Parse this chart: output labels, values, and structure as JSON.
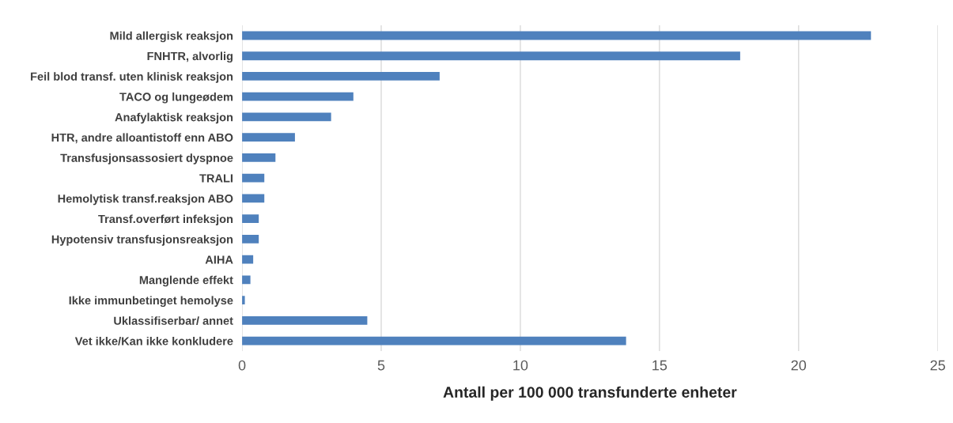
{
  "chart_data": {
    "type": "bar",
    "orientation": "horizontal",
    "xlabel": "Antall per 100 000 transfunderte enheter",
    "categories": [
      "Mild allergisk reaksjon",
      "FNHTR, alvorlig",
      "Feil blod transf. uten klinisk reaksjon",
      "TACO og lungeødem",
      "Anafylaktisk reaksjon",
      "HTR, andre alloantistoff enn ABO",
      "Transfusjonsassosiert dyspnoe",
      "TRALI",
      "Hemolytisk transf.reaksjon ABO",
      "Transf.overført infeksjon",
      "Hypotensiv transfusjonsreaksjon",
      "AIHA",
      "Manglende effekt",
      "Ikke immunbetinget hemolyse",
      "Uklassifiserbar/ annet",
      "Vet ikke/Kan ikke konkludere"
    ],
    "values": [
      22.6,
      17.9,
      7.1,
      4.0,
      3.2,
      1.9,
      1.2,
      0.8,
      0.8,
      0.6,
      0.6,
      0.4,
      0.3,
      0.1,
      4.5,
      13.8
    ],
    "color": "#4f81bd",
    "xlim": [
      0,
      25
    ],
    "xticks": [
      0,
      5,
      10,
      15,
      20,
      25
    ],
    "grid": "x",
    "legend": false
  }
}
